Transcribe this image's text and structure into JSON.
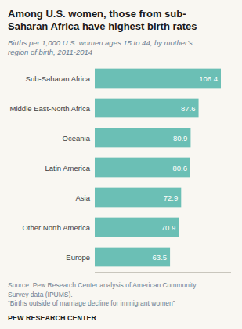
{
  "chart_data": {
    "type": "bar",
    "orientation": "horizontal",
    "title": "Among U.S. women, those from sub-\nSaharan Africa have highest birth rates",
    "subtitle": "Births per 1,000 U.S. women ages 15 to 44, by mother's\nregion of birth, 2011-2014",
    "categories": [
      "Sub-Saharan Africa",
      "Middle East-North Africa",
      "Oceania",
      "Latin America",
      "Asia",
      "Other North America",
      "Europe"
    ],
    "values": [
      106.4,
      87.6,
      80.9,
      80.6,
      72.9,
      70.9,
      63.5
    ],
    "color": "#6bbfb5",
    "xlim": [
      0,
      115
    ],
    "data_labels": true,
    "tick_labels": "y",
    "annotations": [
      "Source: Pew Research Center analysis of American Community\nSurvey data (IPUMS).\n“Births outside of marriage decline for immigrant women”",
      "PEW RESEARCH CENTER"
    ]
  }
}
